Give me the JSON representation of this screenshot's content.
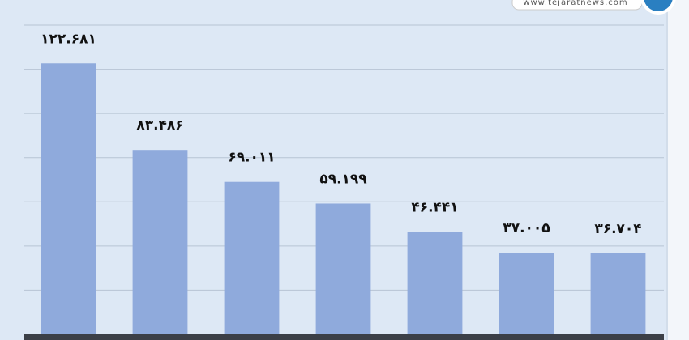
{
  "chart_data": {
    "type": "bar",
    "categories": [
      null,
      null,
      null,
      null,
      null,
      null,
      null
    ],
    "values": [
      122.681,
      83.486,
      69.011,
      59.199,
      46.441,
      37.005,
      36.704
    ],
    "value_labels": [
      "۱۲۲.۶۸۱",
      "۸۳.۴۸۶",
      "۶۹.۰۱۱",
      "۵۹.۱۹۹",
      "۴۶.۴۴۱",
      "۳۷.۰۰۵",
      "۳۶.۷۰۴"
    ],
    "color": "#8faadc",
    "ylim": [
      0,
      140
    ],
    "yticks": [
      0,
      20,
      40,
      60,
      80,
      100,
      120,
      140
    ],
    "grid": true,
    "watermark": "www.tejaratnews.com"
  }
}
